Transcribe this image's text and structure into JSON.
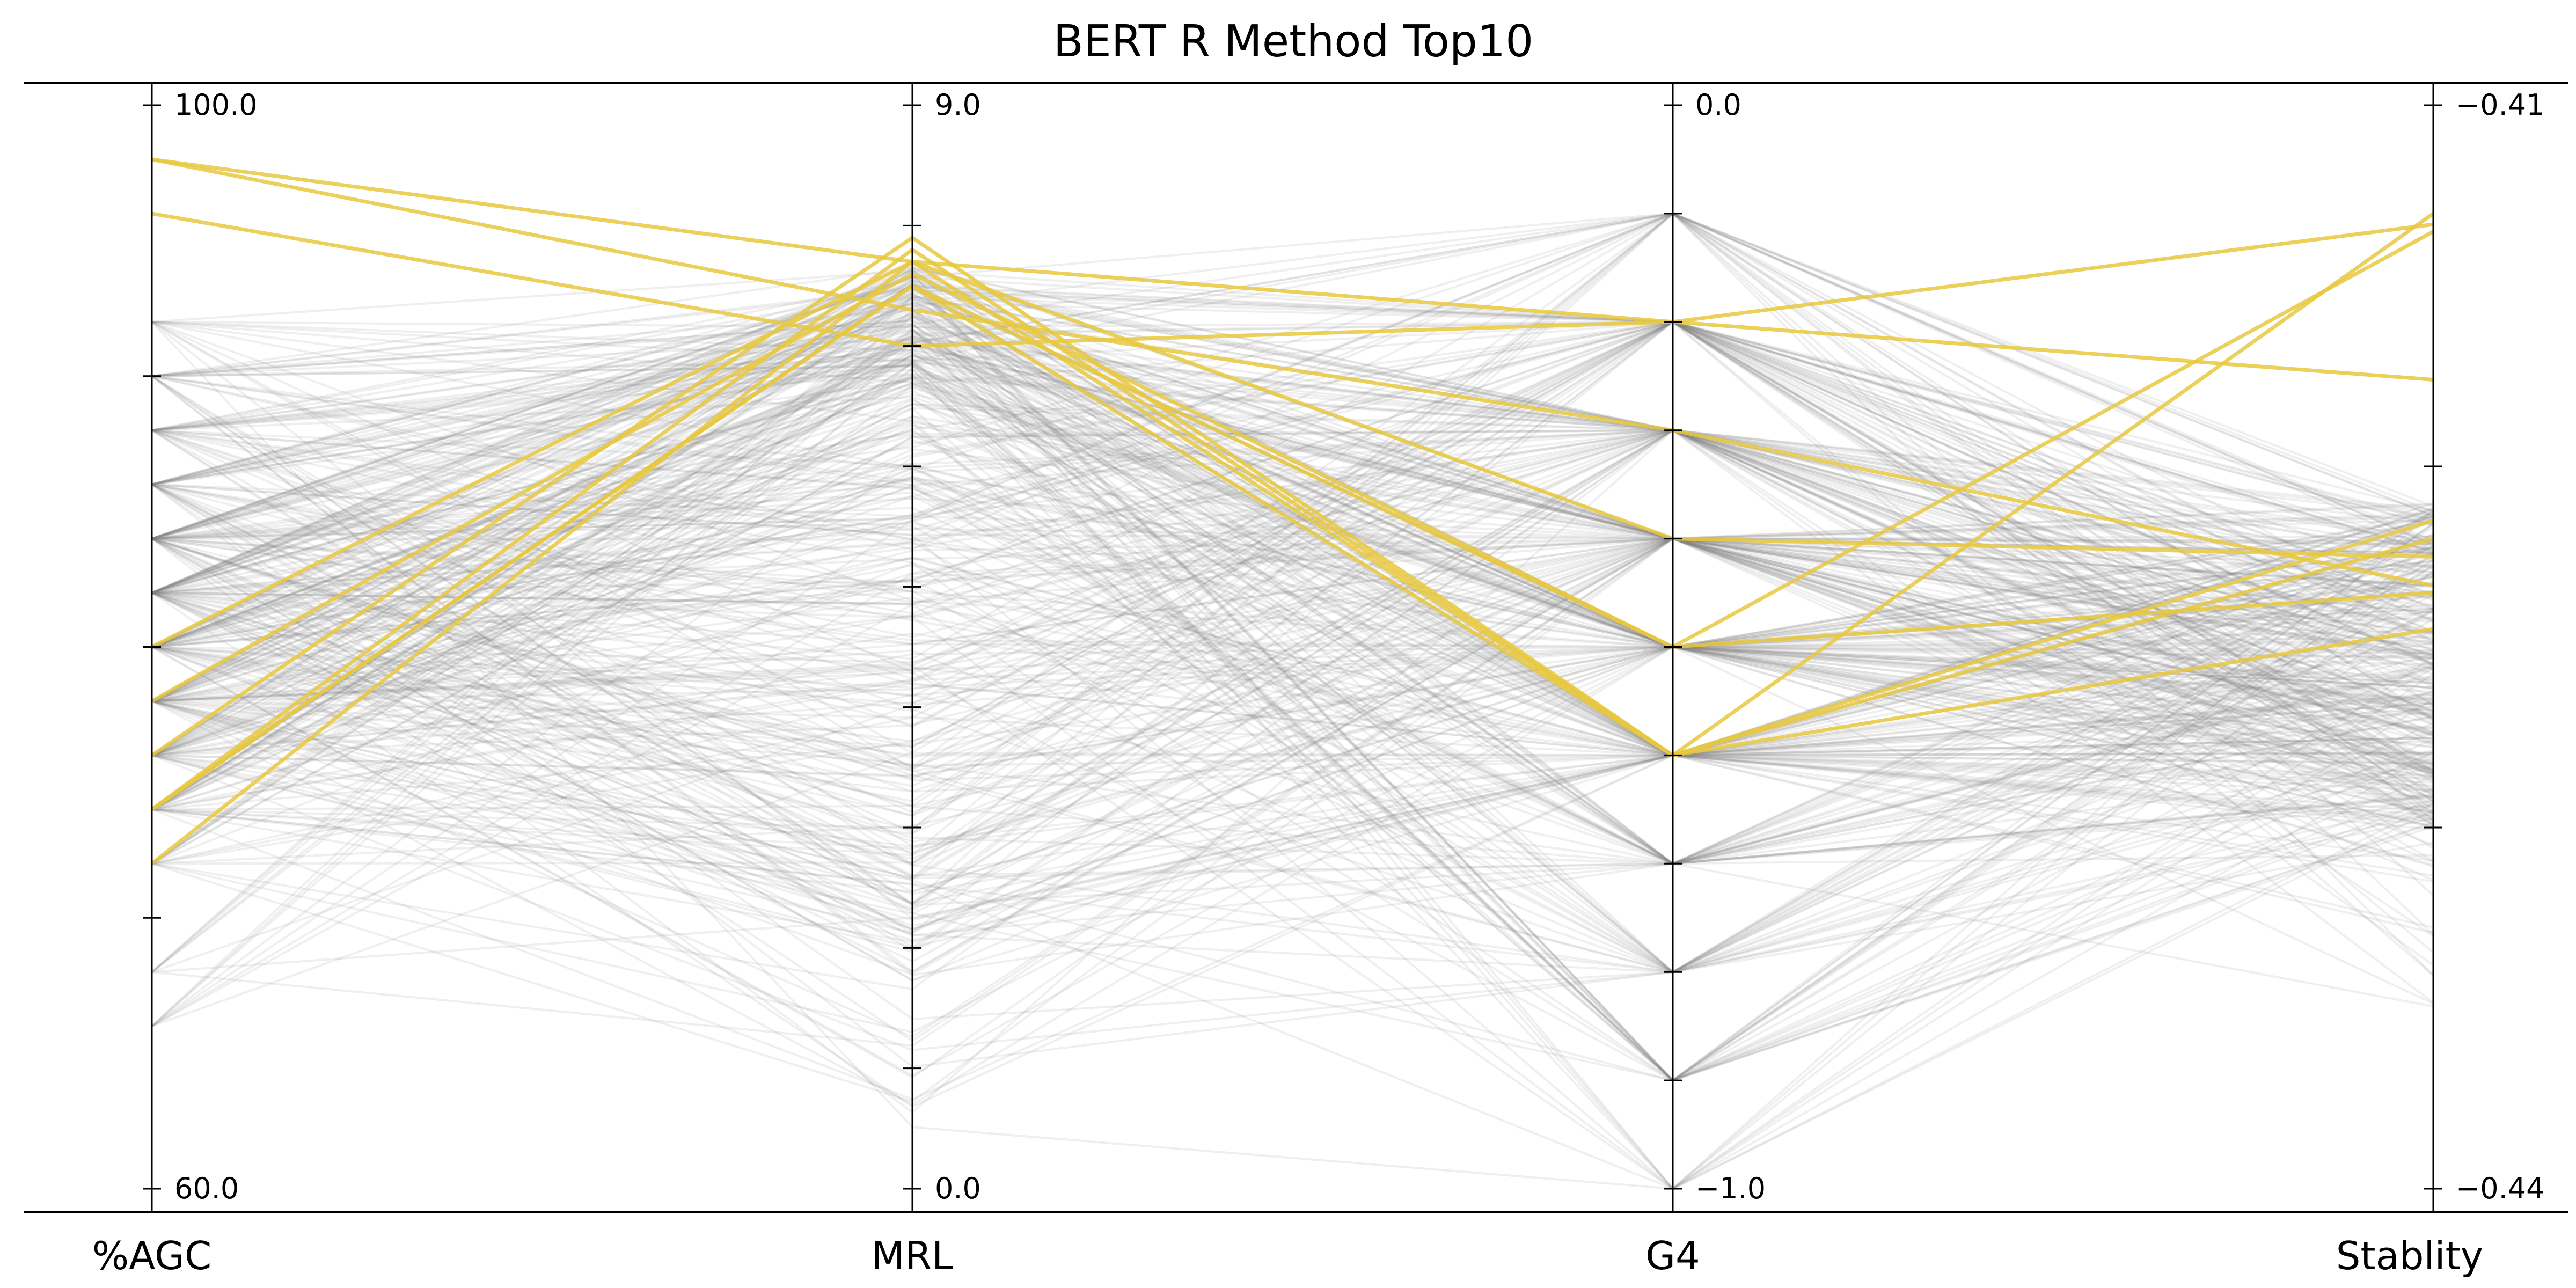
{
  "chart_data": {
    "type": "parallel_coordinates",
    "title": "BERT R Method Top10",
    "axes": [
      {
        "name": "%AGC",
        "min": 60.0,
        "max": 100.0,
        "min_label": "60.0",
        "max_label": "100.0",
        "minor_ticks": [
          70,
          80,
          90
        ]
      },
      {
        "name": "MRL",
        "min": 0.0,
        "max": 9.0,
        "min_label": "0.0",
        "max_label": "9.0",
        "minor_ticks": [
          1,
          2,
          3,
          4,
          5,
          6,
          7,
          8
        ]
      },
      {
        "name": "G4",
        "min": -1.0,
        "max": 0.0,
        "min_label": "−1.0",
        "max_label": "0.0",
        "minor_ticks": [
          -0.9,
          -0.8,
          -0.7,
          -0.6,
          -0.5,
          -0.4,
          -0.3,
          -0.2,
          -0.1
        ]
      },
      {
        "name": "Stablity",
        "min": -0.44,
        "max": -0.41,
        "min_label": "−0.44",
        "max_label": "−0.41",
        "minor_ticks": [
          -0.43,
          -0.42
        ]
      }
    ],
    "highlight_color": "#e8c840",
    "background_color": "#808080",
    "highlighted_series": [
      {
        "values": [
          98.0,
          7.7,
          -0.2,
          -0.4133
        ]
      },
      {
        "values": [
          98.0,
          7.3,
          -0.3,
          -0.4233
        ]
      },
      {
        "values": [
          96.0,
          7.0,
          -0.2,
          -0.4176
        ]
      },
      {
        "values": [
          80.0,
          7.7,
          -0.4,
          -0.4225
        ]
      },
      {
        "values": [
          78.0,
          7.6,
          -0.5,
          -0.4235
        ]
      },
      {
        "values": [
          76.0,
          7.9,
          -0.6,
          -0.4245
        ]
      },
      {
        "values": [
          74.0,
          7.8,
          -0.6,
          -0.422
        ]
      },
      {
        "values": [
          74.0,
          7.5,
          -0.5,
          -0.4135
        ]
      },
      {
        "values": [
          74.0,
          7.5,
          -0.6,
          -0.413
        ]
      },
      {
        "values": [
          72.0,
          7.7,
          -0.6,
          -0.4215
        ]
      }
    ],
    "background_series_count": 420
  }
}
